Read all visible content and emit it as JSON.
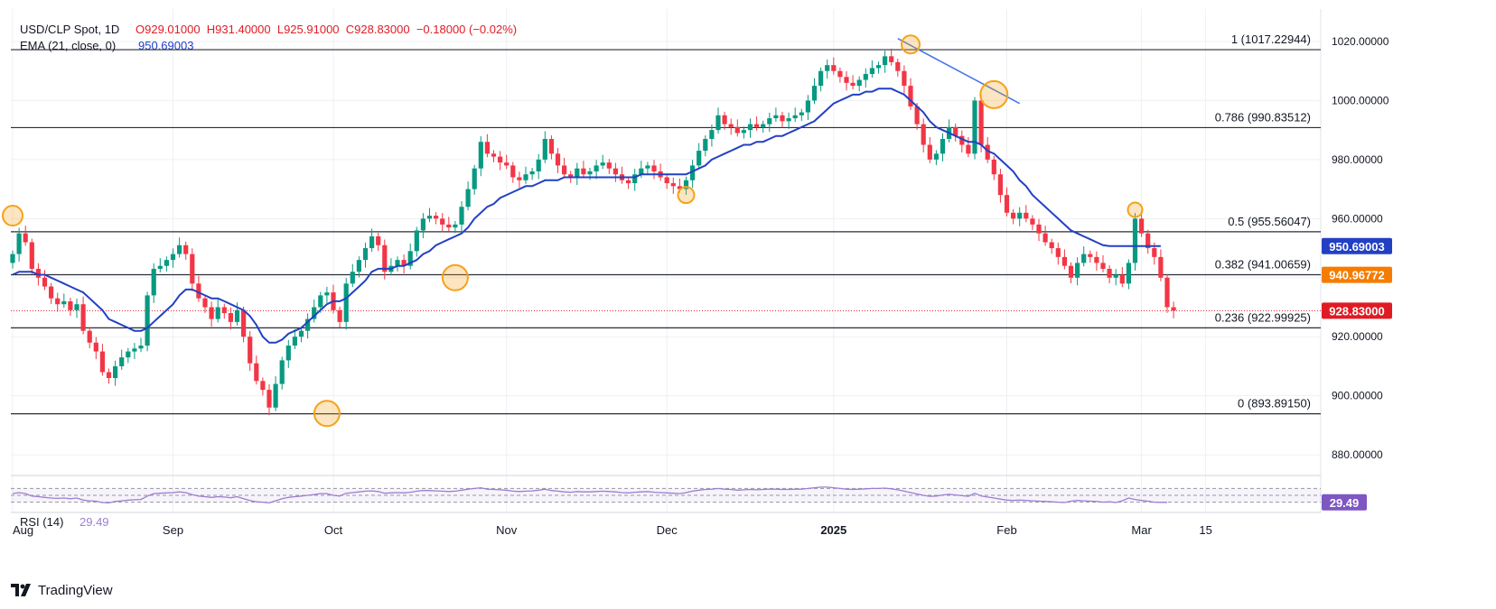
{
  "header": {
    "symbol": "USD/CLP Spot, 1D",
    "ohlc": "O929.01000  H931.40000  L925.91000  C928.83000  −0.18000 (−0.02%)",
    "ema_label": "EMA (21, close, 0)",
    "ema_value": "950.69003"
  },
  "rsi": {
    "label": "RSI (14)",
    "value": "29.49"
  },
  "footer": {
    "brand": "TradingView"
  },
  "colors": {
    "up": "#089981",
    "down": "#f23645",
    "ema": "#2240c4",
    "trend": "#4a78e8",
    "marker": "#f5a21b",
    "rsi": "#9c7fd0",
    "grid": "#eef0f4",
    "fib": "#2a2e39"
  },
  "chart_data": {
    "type": "candlestick",
    "title": "USD/CLP Spot, 1D",
    "ylim": [
      873,
      1031
    ],
    "y_ticks": [
      "880.00000",
      "900.00000",
      "920.00000",
      "940.00000",
      "960.00000",
      "980.00000",
      "1000.00000",
      "1020.00000"
    ],
    "x_ticks": [
      {
        "label": "Aug",
        "t": 0,
        "bold": false
      },
      {
        "label": "Sep",
        "t": 25,
        "bold": false
      },
      {
        "label": "Oct",
        "t": 50,
        "bold": false
      },
      {
        "label": "Nov",
        "t": 77,
        "bold": false
      },
      {
        "label": "Dec",
        "t": 102,
        "bold": false
      },
      {
        "label": "2025",
        "t": 128,
        "bold": true
      },
      {
        "label": "Feb",
        "t": 155,
        "bold": false
      },
      {
        "label": "Mar",
        "t": 176,
        "bold": false
      },
      {
        "label": "15",
        "t": 186,
        "bold": false
      }
    ],
    "fib_levels": [
      {
        "label": "1 (1017.22944)",
        "value": 1017.22944
      },
      {
        "label": "0.786 (990.83512)",
        "value": 990.83512
      },
      {
        "label": "0.5 (955.56047)",
        "value": 955.56047
      },
      {
        "label": "0.382 (941.00659)",
        "value": 941.00659
      },
      {
        "label": "0.236 (922.99925)",
        "value": 922.99925
      },
      {
        "label": "0 (893.89150)",
        "value": 893.8915
      }
    ],
    "price_badges": [
      {
        "label": "950.69003",
        "value": 950.69003,
        "color": "#2240c4"
      },
      {
        "label": "940.96772",
        "value": 940.96772,
        "color": "#f57c00"
      },
      {
        "label": "928.83000",
        "value": 928.83,
        "color": "#e01b24"
      }
    ],
    "last_close": 928.83,
    "closes": [
      948,
      955,
      952,
      943,
      940,
      937,
      933,
      931,
      932,
      929,
      931,
      922,
      918,
      915,
      908,
      906,
      910,
      913,
      915,
      916,
      917,
      934,
      943,
      944,
      946,
      948,
      951,
      948,
      938,
      933,
      930,
      926,
      930,
      928,
      925,
      929,
      920,
      911,
      905,
      902,
      896,
      904,
      912,
      917,
      920,
      922,
      926,
      930,
      934,
      935,
      929,
      925,
      938,
      942,
      946,
      950,
      954,
      951,
      942,
      944,
      946,
      944,
      949,
      956,
      960,
      961,
      960,
      958,
      957,
      958,
      964,
      970,
      977,
      986,
      982,
      981,
      979,
      978,
      974,
      973,
      975,
      976,
      980,
      987,
      982,
      978,
      975,
      974,
      977,
      975,
      976,
      978,
      979,
      977,
      975,
      973,
      972,
      975,
      977,
      978,
      976,
      974,
      972,
      971,
      970,
      973,
      978,
      983,
      987,
      990,
      995,
      992,
      991,
      989,
      990,
      992,
      991,
      992,
      994,
      995,
      993,
      994,
      995,
      996,
      1000,
      1005,
      1010,
      1012,
      1010,
      1008,
      1006,
      1005,
      1007,
      1009,
      1011,
      1012,
      1015,
      1013,
      1010,
      1005,
      998,
      992,
      985,
      980,
      982,
      987,
      991,
      988,
      985,
      982,
      1000,
      985,
      980,
      975,
      968,
      962,
      960,
      962,
      960,
      958,
      955,
      952,
      950,
      947,
      944,
      940,
      945,
      948,
      947,
      945,
      943,
      940,
      941,
      938,
      945,
      960,
      955,
      950,
      947,
      940,
      930,
      928.83
    ],
    "ema": [
      941,
      942,
      942,
      942,
      941,
      941,
      940,
      939,
      938,
      937,
      936,
      935,
      933,
      931,
      929,
      926,
      925,
      924,
      923,
      922,
      922,
      923,
      925,
      927,
      929,
      931,
      934,
      936,
      936,
      935,
      934,
      933,
      933,
      932,
      931,
      930,
      929,
      927,
      924,
      920,
      918,
      918,
      919,
      921,
      922,
      923,
      925,
      927,
      929,
      931,
      932,
      932,
      933,
      935,
      937,
      939,
      942,
      943,
      943,
      943,
      944,
      944,
      945,
      946,
      948,
      949,
      951,
      952,
      953,
      954,
      955,
      957,
      960,
      962,
      964,
      965,
      967,
      968,
      969,
      970,
      971,
      971,
      972,
      973,
      973,
      973,
      974,
      974,
      974,
      974,
      974,
      974,
      974,
      974,
      974,
      974,
      974,
      974,
      975,
      975,
      975,
      975,
      975,
      975,
      975,
      975,
      976,
      977,
      978,
      980,
      981,
      982,
      983,
      984,
      985,
      985,
      986,
      986,
      987,
      988,
      988,
      989,
      990,
      991,
      992,
      993,
      995,
      997,
      999,
      1000,
      1001,
      1002,
      1002,
      1003,
      1003,
      1004,
      1004,
      1004,
      1003,
      1002,
      1000,
      998,
      996,
      993,
      991,
      990,
      989,
      988,
      987,
      986,
      986,
      985,
      983,
      982,
      980,
      978,
      976,
      973,
      971,
      968,
      966,
      964,
      962,
      960,
      958,
      956,
      955,
      954,
      953,
      952,
      951,
      950.69,
      950.69,
      950.69,
      950.69,
      950.69,
      950.69,
      950.69,
      950.69,
      950.69
    ],
    "rsi": [
      55,
      58,
      55,
      48,
      46,
      44,
      42,
      41,
      42,
      40,
      42,
      36,
      34,
      33,
      29,
      28,
      32,
      34,
      36,
      37,
      38,
      48,
      55,
      56,
      57,
      58,
      60,
      58,
      52,
      48,
      46,
      44,
      46,
      45,
      43,
      46,
      40,
      35,
      31,
      30,
      28,
      34,
      40,
      44,
      46,
      48,
      50,
      52,
      55,
      55,
      50,
      48,
      56,
      58,
      60,
      62,
      63,
      61,
      56,
      57,
      58,
      57,
      59,
      62,
      64,
      64,
      63,
      62,
      61,
      62,
      65,
      68,
      70,
      72,
      68,
      67,
      66,
      65,
      62,
      61,
      62,
      63,
      65,
      68,
      64,
      62,
      60,
      59,
      61,
      60,
      60,
      61,
      62,
      61,
      60,
      58,
      57,
      59,
      60,
      61,
      59,
      58,
      57,
      56,
      55,
      58,
      62,
      65,
      67,
      68,
      70,
      68,
      67,
      65,
      66,
      67,
      66,
      67,
      68,
      68,
      67,
      67,
      68,
      68,
      70,
      72,
      74,
      74,
      72,
      70,
      68,
      67,
      68,
      69,
      70,
      70,
      71,
      69,
      66,
      62,
      58,
      54,
      50,
      47,
      48,
      51,
      53,
      51,
      49,
      47,
      56,
      48,
      45,
      42,
      39,
      36,
      35,
      36,
      35,
      34,
      33,
      32,
      31,
      30,
      29,
      33,
      35,
      34,
      33,
      32,
      30,
      31,
      29,
      34,
      42,
      38,
      35,
      33,
      30,
      29.5,
      29.49
    ],
    "markers": [
      {
        "t": 0,
        "v": 961,
        "r": 11
      },
      {
        "t": 49,
        "v": 894,
        "r": 14
      },
      {
        "t": 69,
        "v": 940,
        "r": 14
      },
      {
        "t": 105,
        "v": 968,
        "r": 9
      },
      {
        "t": 140,
        "v": 1019,
        "r": 10
      },
      {
        "t": 153,
        "v": 1002,
        "r": 15
      },
      {
        "t": 175,
        "v": 963,
        "r": 8
      }
    ],
    "trendline": {
      "t0": 138,
      "v0": 1021,
      "t1": 157,
      "v1": 999
    }
  }
}
